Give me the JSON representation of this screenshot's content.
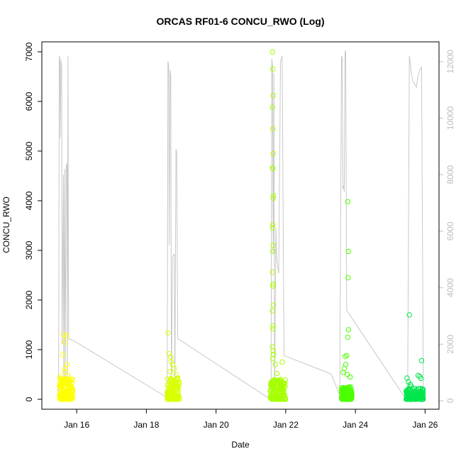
{
  "chart_data": {
    "type": "scatter",
    "title": "ORCAS RF01-6 CONCU_RWO (Log)",
    "xlabel": "Date",
    "ylabel": "CONCU_RWO",
    "y2label": "",
    "xlim": [
      15.0,
      26.4
    ],
    "ylim": [
      -200,
      7200
    ],
    "y2lim": [
      -300,
      12700
    ],
    "x_ticks": [
      {
        "value": 16,
        "label": "Jan 16"
      },
      {
        "value": 18,
        "label": "Jan 18"
      },
      {
        "value": 20,
        "label": "Jan 20"
      },
      {
        "value": 22,
        "label": "Jan 22"
      },
      {
        "value": 24,
        "label": "Jan 24"
      },
      {
        "value": 26,
        "label": "Jan 26"
      }
    ],
    "y_ticks": [
      0,
      1000,
      2000,
      3000,
      4000,
      5000,
      6000,
      7000
    ],
    "y2_ticks": [
      0,
      2000,
      4000,
      6000,
      8000,
      10000,
      12000
    ],
    "grid": false,
    "series": [
      {
        "axis": "left",
        "style": "points",
        "color": "#ffff00",
        "x_range": [
          15.5,
          15.9
        ],
        "points": [
          [
            15.62,
            1300
          ],
          [
            15.66,
            1150
          ],
          [
            15.7,
            1280
          ],
          [
            15.6,
            900
          ],
          [
            15.72,
            700
          ],
          [
            15.52,
            450
          ],
          [
            15.58,
            400
          ],
          [
            15.64,
            560
          ],
          [
            15.55,
            300
          ],
          [
            15.68,
            620
          ],
          [
            15.75,
            480
          ],
          [
            15.8,
            350
          ]
        ],
        "baseline_range": [
          0,
          420
        ]
      },
      {
        "axis": "left",
        "style": "points",
        "color": "#d9ff00",
        "x_range": [
          18.6,
          18.95
        ],
        "points": [
          [
            18.62,
            1340
          ],
          [
            18.65,
            920
          ],
          [
            18.7,
            850
          ],
          [
            18.75,
            700
          ],
          [
            18.8,
            620
          ],
          [
            18.68,
            560
          ],
          [
            18.85,
            500
          ],
          [
            18.9,
            430
          ],
          [
            18.72,
            760
          ]
        ],
        "baseline_range": [
          0,
          420
        ]
      },
      {
        "axis": "left",
        "style": "points",
        "color": "#a6ff00",
        "x_range": [
          21.55,
          22.0
        ],
        "points": [
          [
            21.62,
            7000
          ],
          [
            21.63,
            6650
          ],
          [
            21.64,
            6120
          ],
          [
            21.62,
            5880
          ],
          [
            21.63,
            5450
          ],
          [
            21.64,
            4950
          ],
          [
            21.62,
            4660
          ],
          [
            21.63,
            4650
          ],
          [
            21.65,
            4100
          ],
          [
            21.64,
            4050
          ],
          [
            21.63,
            3520
          ],
          [
            21.62,
            3450
          ],
          [
            21.64,
            3100
          ],
          [
            21.63,
            2980
          ],
          [
            21.62,
            2560
          ],
          [
            21.64,
            2320
          ],
          [
            21.63,
            2280
          ],
          [
            21.65,
            1900
          ],
          [
            21.62,
            1780
          ],
          [
            21.64,
            1480
          ],
          [
            21.63,
            1420
          ],
          [
            21.62,
            1060
          ],
          [
            21.64,
            980
          ],
          [
            21.65,
            900
          ],
          [
            21.63,
            820
          ],
          [
            21.7,
            700
          ],
          [
            21.75,
            520
          ],
          [
            21.9,
            750
          ],
          [
            21.85,
            400
          ],
          [
            21.95,
            320
          ]
        ],
        "baseline_range": [
          0,
          400
        ]
      },
      {
        "axis": "left",
        "style": "points",
        "color": "#4dff00",
        "x_range": [
          23.6,
          23.9
        ],
        "points": [
          [
            23.78,
            3980
          ],
          [
            23.8,
            2980
          ],
          [
            23.79,
            2450
          ],
          [
            23.8,
            1400
          ],
          [
            23.78,
            1250
          ],
          [
            23.75,
            880
          ],
          [
            23.7,
            860
          ],
          [
            23.72,
            700
          ],
          [
            23.68,
            620
          ],
          [
            23.65,
            540
          ],
          [
            23.77,
            500
          ],
          [
            23.85,
            450
          ]
        ],
        "baseline_range": [
          0,
          260
        ]
      },
      {
        "axis": "left",
        "style": "points",
        "color": "#00e64d",
        "x_range": [
          25.45,
          25.95
        ],
        "points": [
          [
            25.55,
            1700
          ],
          [
            25.9,
            780
          ],
          [
            25.48,
            430
          ],
          [
            25.52,
            350
          ],
          [
            25.58,
            300
          ],
          [
            25.8,
            480
          ],
          [
            25.85,
            460
          ],
          [
            25.88,
            420
          ],
          [
            25.6,
            260
          ],
          [
            25.7,
            220
          ]
        ],
        "baseline_range": [
          0,
          220
        ]
      },
      {
        "axis": "right",
        "style": "line",
        "color": "#c8c8c8",
        "points": [
          [
            15.48,
            100
          ],
          [
            15.5,
            12200
          ],
          [
            15.52,
            12100
          ],
          [
            15.53,
            9300
          ],
          [
            15.55,
            12050
          ],
          [
            15.57,
            11800
          ],
          [
            15.58,
            2000
          ],
          [
            15.62,
            8000
          ],
          [
            15.63,
            600
          ],
          [
            15.66,
            8200
          ],
          [
            15.67,
            800
          ],
          [
            15.7,
            8300
          ],
          [
            15.72,
            8400
          ],
          [
            15.73,
            300
          ],
          [
            15.75,
            12200
          ],
          [
            15.77,
            2200
          ],
          [
            15.95,
            2100
          ],
          [
            18.55,
            150
          ],
          [
            18.6,
            100
          ],
          [
            18.62,
            12000
          ],
          [
            18.64,
            11900
          ],
          [
            18.66,
            5500
          ],
          [
            18.68,
            11700
          ],
          [
            18.7,
            11500
          ],
          [
            18.72,
            300
          ],
          [
            18.75,
            5100
          ],
          [
            18.78,
            5150
          ],
          [
            18.8,
            5200
          ],
          [
            18.82,
            400
          ],
          [
            18.85,
            8900
          ],
          [
            18.87,
            8800
          ],
          [
            18.9,
            2200
          ],
          [
            21.5,
            100
          ],
          [
            21.58,
            200
          ],
          [
            21.6,
            12100
          ],
          [
            21.62,
            11900
          ],
          [
            21.64,
            5200
          ],
          [
            21.66,
            11600
          ],
          [
            21.68,
            300
          ],
          [
            21.72,
            6100
          ],
          [
            21.74,
            5000
          ],
          [
            21.8,
            4500
          ],
          [
            21.85,
            12000
          ],
          [
            21.9,
            12200
          ],
          [
            21.95,
            1600
          ],
          [
            23.3,
            950
          ],
          [
            23.55,
            200
          ],
          [
            23.6,
            12100
          ],
          [
            23.62,
            12200
          ],
          [
            23.64,
            7500
          ],
          [
            23.66,
            7600
          ],
          [
            23.68,
            7400
          ],
          [
            23.7,
            12300
          ],
          [
            23.72,
            12400
          ],
          [
            23.75,
            3200
          ],
          [
            25.4,
            150
          ],
          [
            25.5,
            300
          ],
          [
            25.55,
            12200
          ],
          [
            25.58,
            11900
          ],
          [
            25.6,
            11600
          ],
          [
            25.65,
            11300
          ],
          [
            25.7,
            11200
          ],
          [
            25.75,
            11100
          ],
          [
            25.8,
            11500
          ],
          [
            25.85,
            11700
          ],
          [
            25.9,
            11800
          ],
          [
            25.95,
            150
          ]
        ]
      }
    ]
  }
}
